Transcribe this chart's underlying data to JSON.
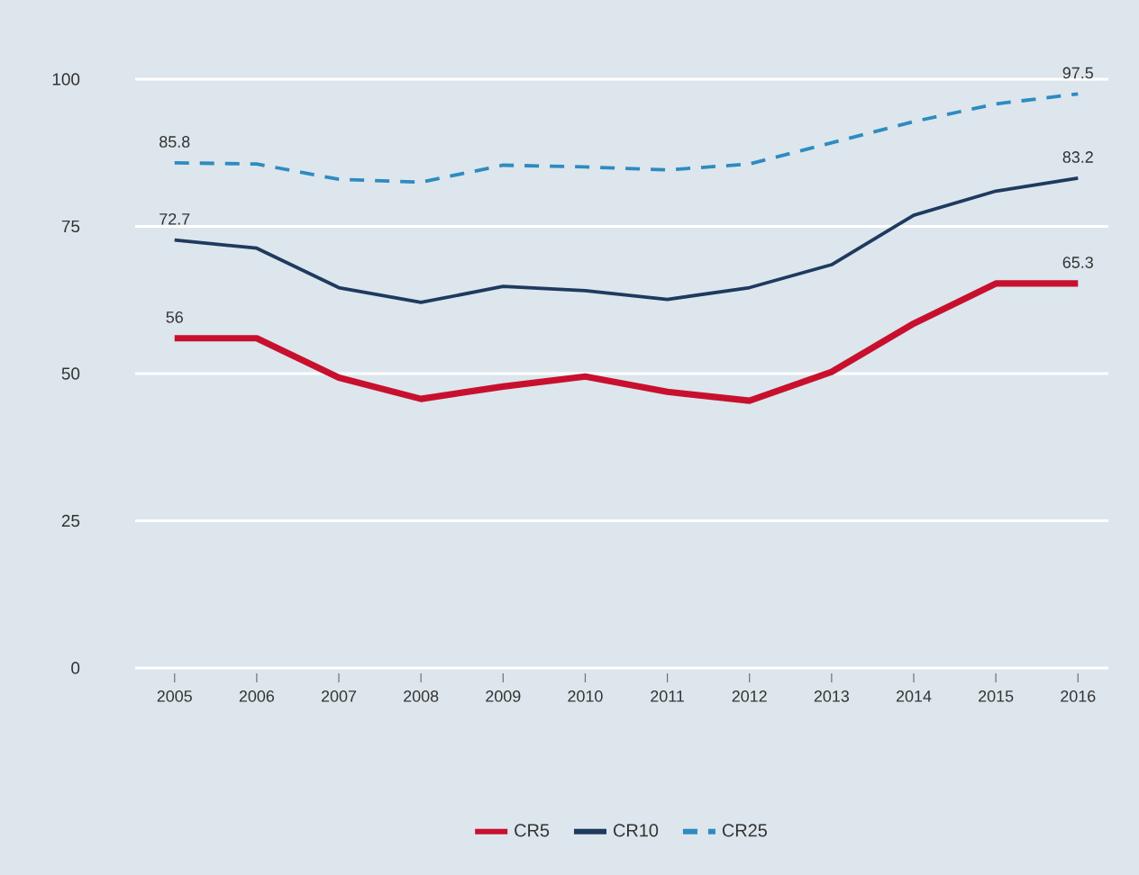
{
  "chart_data": {
    "type": "line",
    "categories": [
      "2005",
      "2006",
      "2007",
      "2008",
      "2009",
      "2010",
      "2011",
      "2012",
      "2013",
      "2014",
      "2015",
      "2016"
    ],
    "series": [
      {
        "name": "CR5",
        "color": "#c8102e",
        "line_style": "solid",
        "values": [
          56,
          56,
          49.3,
          45.7,
          47.8,
          49.5,
          46.9,
          45.4,
          50.3,
          58.5,
          65.3,
          65.3
        ],
        "value_labels": [
          "56",
          null,
          null,
          null,
          null,
          null,
          null,
          null,
          null,
          null,
          null,
          "65.3"
        ]
      },
      {
        "name": "CR10",
        "color": "#1f3a5f",
        "line_style": "solid",
        "values": [
          72.7,
          71.3,
          64.6,
          62.1,
          64.8,
          64.1,
          62.6,
          64.6,
          68.5,
          76.9,
          81.0,
          83.2
        ],
        "value_labels": [
          "72.7",
          null,
          null,
          null,
          null,
          null,
          null,
          null,
          null,
          null,
          null,
          "83.2"
        ]
      },
      {
        "name": "CR25",
        "color": "#2e8bc0",
        "line_style": "dashed",
        "values": [
          85.8,
          85.6,
          83.0,
          82.5,
          85.4,
          85.1,
          84.6,
          85.6,
          89.2,
          92.8,
          95.8,
          97.5
        ],
        "value_labels": [
          "85.8",
          null,
          null,
          null,
          null,
          null,
          null,
          null,
          null,
          null,
          null,
          "97.5"
        ]
      }
    ],
    "ylim": [
      0,
      100
    ],
    "yticks": [
      0,
      25,
      50,
      75,
      100
    ],
    "grid": "y",
    "legend": "bottom",
    "marker": "none"
  }
}
